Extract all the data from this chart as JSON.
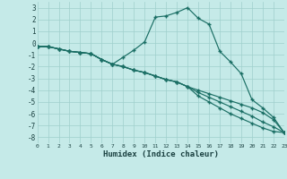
{
  "xlabel": "Humidex (Indice chaleur)",
  "bg_color": "#c5eae8",
  "grid_color": "#9fcfcc",
  "line_color": "#1a6e64",
  "xlim": [
    0,
    23
  ],
  "ylim": [
    -8.5,
    3.5
  ],
  "yticks": [
    -8,
    -7,
    -6,
    -5,
    -4,
    -3,
    -2,
    -1,
    0,
    1,
    2,
    3
  ],
  "xticks": [
    0,
    1,
    2,
    3,
    4,
    5,
    6,
    7,
    8,
    9,
    10,
    11,
    12,
    13,
    14,
    15,
    16,
    17,
    18,
    19,
    20,
    21,
    22,
    23
  ],
  "lines": [
    {
      "x": [
        0,
        1,
        2,
        3,
        4,
        5,
        6,
        7,
        8,
        9,
        10,
        11,
        12,
        13,
        14,
        15,
        16,
        17,
        18,
        19,
        20,
        21,
        22,
        23
      ],
      "y": [
        -0.3,
        -0.3,
        -0.5,
        -0.7,
        -0.8,
        -0.9,
        -1.4,
        -1.8,
        -1.2,
        -0.6,
        0.1,
        2.2,
        2.3,
        2.6,
        3.0,
        2.1,
        1.6,
        -0.7,
        -1.6,
        -2.6,
        -4.8,
        -5.5,
        -6.3,
        -7.6
      ]
    },
    {
      "x": [
        0,
        1,
        2,
        3,
        4,
        5,
        6,
        7,
        8,
        9,
        10,
        11,
        12,
        13,
        14,
        15,
        16,
        17,
        18,
        19,
        20,
        21,
        22,
        23
      ],
      "y": [
        -0.3,
        -0.3,
        -0.5,
        -0.7,
        -0.8,
        -0.9,
        -1.4,
        -1.8,
        -2.0,
        -2.3,
        -2.5,
        -2.8,
        -3.1,
        -3.3,
        -3.7,
        -4.0,
        -4.3,
        -4.6,
        -4.9,
        -5.2,
        -5.5,
        -5.9,
        -6.5,
        -7.6
      ]
    },
    {
      "x": [
        0,
        1,
        2,
        3,
        4,
        5,
        6,
        7,
        8,
        9,
        10,
        11,
        12,
        13,
        14,
        15,
        16,
        17,
        18,
        19,
        20,
        21,
        22,
        23
      ],
      "y": [
        -0.3,
        -0.3,
        -0.5,
        -0.7,
        -0.8,
        -0.9,
        -1.4,
        -1.8,
        -2.0,
        -2.3,
        -2.5,
        -2.8,
        -3.1,
        -3.3,
        -3.7,
        -4.2,
        -4.6,
        -5.0,
        -5.4,
        -5.8,
        -6.2,
        -6.7,
        -7.1,
        -7.6
      ]
    },
    {
      "x": [
        0,
        1,
        2,
        3,
        4,
        5,
        6,
        7,
        8,
        9,
        10,
        11,
        12,
        13,
        14,
        15,
        16,
        17,
        18,
        19,
        20,
        21,
        22,
        23
      ],
      "y": [
        -0.3,
        -0.3,
        -0.5,
        -0.7,
        -0.8,
        -0.9,
        -1.4,
        -1.8,
        -2.0,
        -2.3,
        -2.5,
        -2.8,
        -3.1,
        -3.3,
        -3.7,
        -4.5,
        -5.0,
        -5.5,
        -6.0,
        -6.4,
        -6.8,
        -7.2,
        -7.5,
        -7.6
      ]
    }
  ]
}
